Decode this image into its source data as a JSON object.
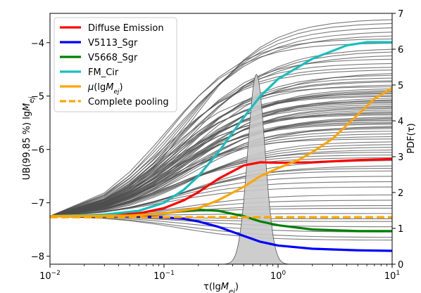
{
  "chart_data": {
    "type": "line",
    "title": "",
    "xlabel": "τ(lgMej)",
    "xlabel_parts": {
      "main": "τ(lg",
      "italic": "M",
      "sub": "ej",
      "end": ")"
    },
    "ylabel": "UB(99.85%) lgMej",
    "ylabel_parts": {
      "main": "UB(99.85 %) lg",
      "italic": "M",
      "sub": "ej"
    },
    "y2label": "PDF(τ)",
    "xscale": "log",
    "xlim": [
      0.01,
      10
    ],
    "ylim": [
      -8.15,
      -3.45
    ],
    "y2lim": [
      0,
      7
    ],
    "grid": false,
    "legend_position": "top-left",
    "x_ticks": [
      {
        "value": 0.01,
        "base": "10",
        "exp": "−2"
      },
      {
        "value": 0.1,
        "base": "10",
        "exp": "−1"
      },
      {
        "value": 1,
        "base": "10",
        "exp": "0"
      },
      {
        "value": 10,
        "base": "10",
        "exp": "1"
      }
    ],
    "y_ticks": [
      {
        "value": -8,
        "label": "−8"
      },
      {
        "value": -7,
        "label": "−7"
      },
      {
        "value": -6,
        "label": "−6"
      },
      {
        "value": -5,
        "label": "−5"
      },
      {
        "value": -4,
        "label": "−4"
      }
    ],
    "y2_ticks": [
      {
        "value": 0,
        "label": "0"
      },
      {
        "value": 1,
        "label": "1"
      },
      {
        "value": 2,
        "label": "2"
      },
      {
        "value": 3,
        "label": "3"
      },
      {
        "value": 4,
        "label": "4"
      },
      {
        "value": 5,
        "label": "5"
      },
      {
        "value": 6,
        "label": "6"
      },
      {
        "value": 7,
        "label": "7"
      }
    ],
    "start_value": -7.25,
    "highlighted_series": [
      {
        "name": "Diffuse Emission",
        "color": "#ff0000",
        "x": [
          0.01,
          0.03,
          0.06,
          0.1,
          0.15,
          0.2,
          0.3,
          0.5,
          0.7,
          1,
          2,
          5,
          10
        ],
        "y": [
          -7.25,
          -7.24,
          -7.2,
          -7.1,
          -6.95,
          -6.8,
          -6.55,
          -6.3,
          -6.24,
          -6.25,
          -6.24,
          -6.2,
          -6.18
        ]
      },
      {
        "name": "V5113_Sgr",
        "color": "#0000ff",
        "x": [
          0.01,
          0.05,
          0.1,
          0.15,
          0.2,
          0.3,
          0.5,
          0.7,
          1,
          2,
          5,
          10
        ],
        "y": [
          -7.25,
          -7.25,
          -7.27,
          -7.3,
          -7.35,
          -7.45,
          -7.62,
          -7.73,
          -7.8,
          -7.86,
          -7.89,
          -7.9
        ]
      },
      {
        "name": "V5668_Sgr",
        "color": "#008000",
        "x": [
          0.01,
          0.05,
          0.1,
          0.15,
          0.2,
          0.3,
          0.5,
          0.7,
          1,
          2,
          5,
          10
        ],
        "y": [
          -7.25,
          -7.24,
          -7.2,
          -7.15,
          -7.13,
          -7.15,
          -7.25,
          -7.35,
          -7.42,
          -7.5,
          -7.53,
          -7.53
        ]
      },
      {
        "name": "FM_Cir",
        "color": "#17bfbf",
        "x": [
          0.01,
          0.03,
          0.06,
          0.1,
          0.15,
          0.2,
          0.3,
          0.5,
          0.7,
          1,
          2,
          4,
          6,
          10
        ],
        "y": [
          -7.25,
          -7.22,
          -7.15,
          -7.0,
          -6.75,
          -6.5,
          -6.05,
          -5.4,
          -5.0,
          -4.68,
          -4.3,
          -4.05,
          -3.99,
          -3.99
        ]
      }
    ],
    "mu_series": {
      "name": "μ(lgMej)",
      "color": "#ffa500",
      "x": [
        0.01,
        0.05,
        0.1,
        0.2,
        0.3,
        0.5,
        0.7,
        1,
        1.5,
        2,
        3,
        5,
        7,
        10
      ],
      "y": [
        -7.25,
        -7.24,
        -7.2,
        -7.1,
        -6.95,
        -6.7,
        -6.5,
        -6.35,
        -6.2,
        -6.05,
        -5.8,
        -5.35,
        -5.05,
        -4.85
      ]
    },
    "pooling_series": {
      "name": "Complete pooling",
      "color": "#ffa500",
      "dash": true,
      "x": [
        0.01,
        10
      ],
      "y": [
        -7.27,
        -7.27
      ]
    },
    "background_curves": {
      "color": "#4d4d4d",
      "x": [
        0.01,
        0.03,
        0.05,
        0.08,
        0.1,
        0.15,
        0.2,
        0.3,
        0.5,
        0.7,
        1,
        1.5,
        2,
        3,
        5,
        7,
        10
      ],
      "final_values": [
        -3.55,
        -3.62,
        -3.7,
        -3.78,
        -3.85,
        -3.92,
        -4.0,
        -4.1,
        -4.15,
        -4.22,
        -4.3,
        -4.38,
        -4.45,
        -4.5,
        -4.55,
        -4.6,
        -4.65,
        -4.7,
        -4.72,
        -4.78,
        -4.82,
        -4.85,
        -4.88,
        -4.9,
        -4.92,
        -4.95,
        -4.98,
        -5.0,
        -5.02,
        -5.05,
        -5.08,
        -5.1,
        -5.12,
        -5.15,
        -5.18,
        -5.2,
        -5.22,
        -5.25,
        -5.28,
        -5.3,
        -5.33,
        -5.35,
        -5.38,
        -5.4,
        -5.42,
        -5.45,
        -5.48,
        -5.5,
        -5.52,
        -5.55,
        -5.58,
        -5.6,
        -5.65,
        -5.7,
        -5.75,
        -5.8,
        -5.85,
        -5.9,
        -5.95,
        -6.0,
        -6.05,
        -6.1,
        -6.15,
        -6.2,
        -6.3,
        -6.35,
        -6.4,
        -6.5,
        -6.6,
        -6.7,
        -6.85,
        -6.95,
        -7.05,
        -7.1,
        -7.2,
        -7.3,
        -7.35,
        -7.45,
        -7.55,
        -7.65,
        -7.7
      ]
    },
    "pdf": {
      "fill": "#c8c8c8",
      "edge": "#555555",
      "log_center": -0.19,
      "log_sigma": 0.075,
      "peak": 5.3
    }
  },
  "legend": {
    "items": [
      {
        "label": "Diffuse Emission",
        "color": "#ff0000",
        "dashed": false,
        "math": false
      },
      {
        "label": "V5113_Sgr",
        "color": "#0000ff",
        "dashed": false,
        "math": false
      },
      {
        "label": "V5668_Sgr",
        "color": "#008000",
        "dashed": false,
        "math": false
      },
      {
        "label": "FM_Cir",
        "color": "#17bfbf",
        "dashed": false,
        "math": false
      },
      {
        "label": "μ(lgMej)",
        "color": "#ffa500",
        "dashed": false,
        "math": true,
        "parts": {
          "mu": "μ",
          "open": "(lg",
          "italic": "M",
          "sub": "ej",
          "close": ")"
        }
      },
      {
        "label": "Complete pooling",
        "color": "#ffa500",
        "dashed": true,
        "math": false
      }
    ]
  }
}
